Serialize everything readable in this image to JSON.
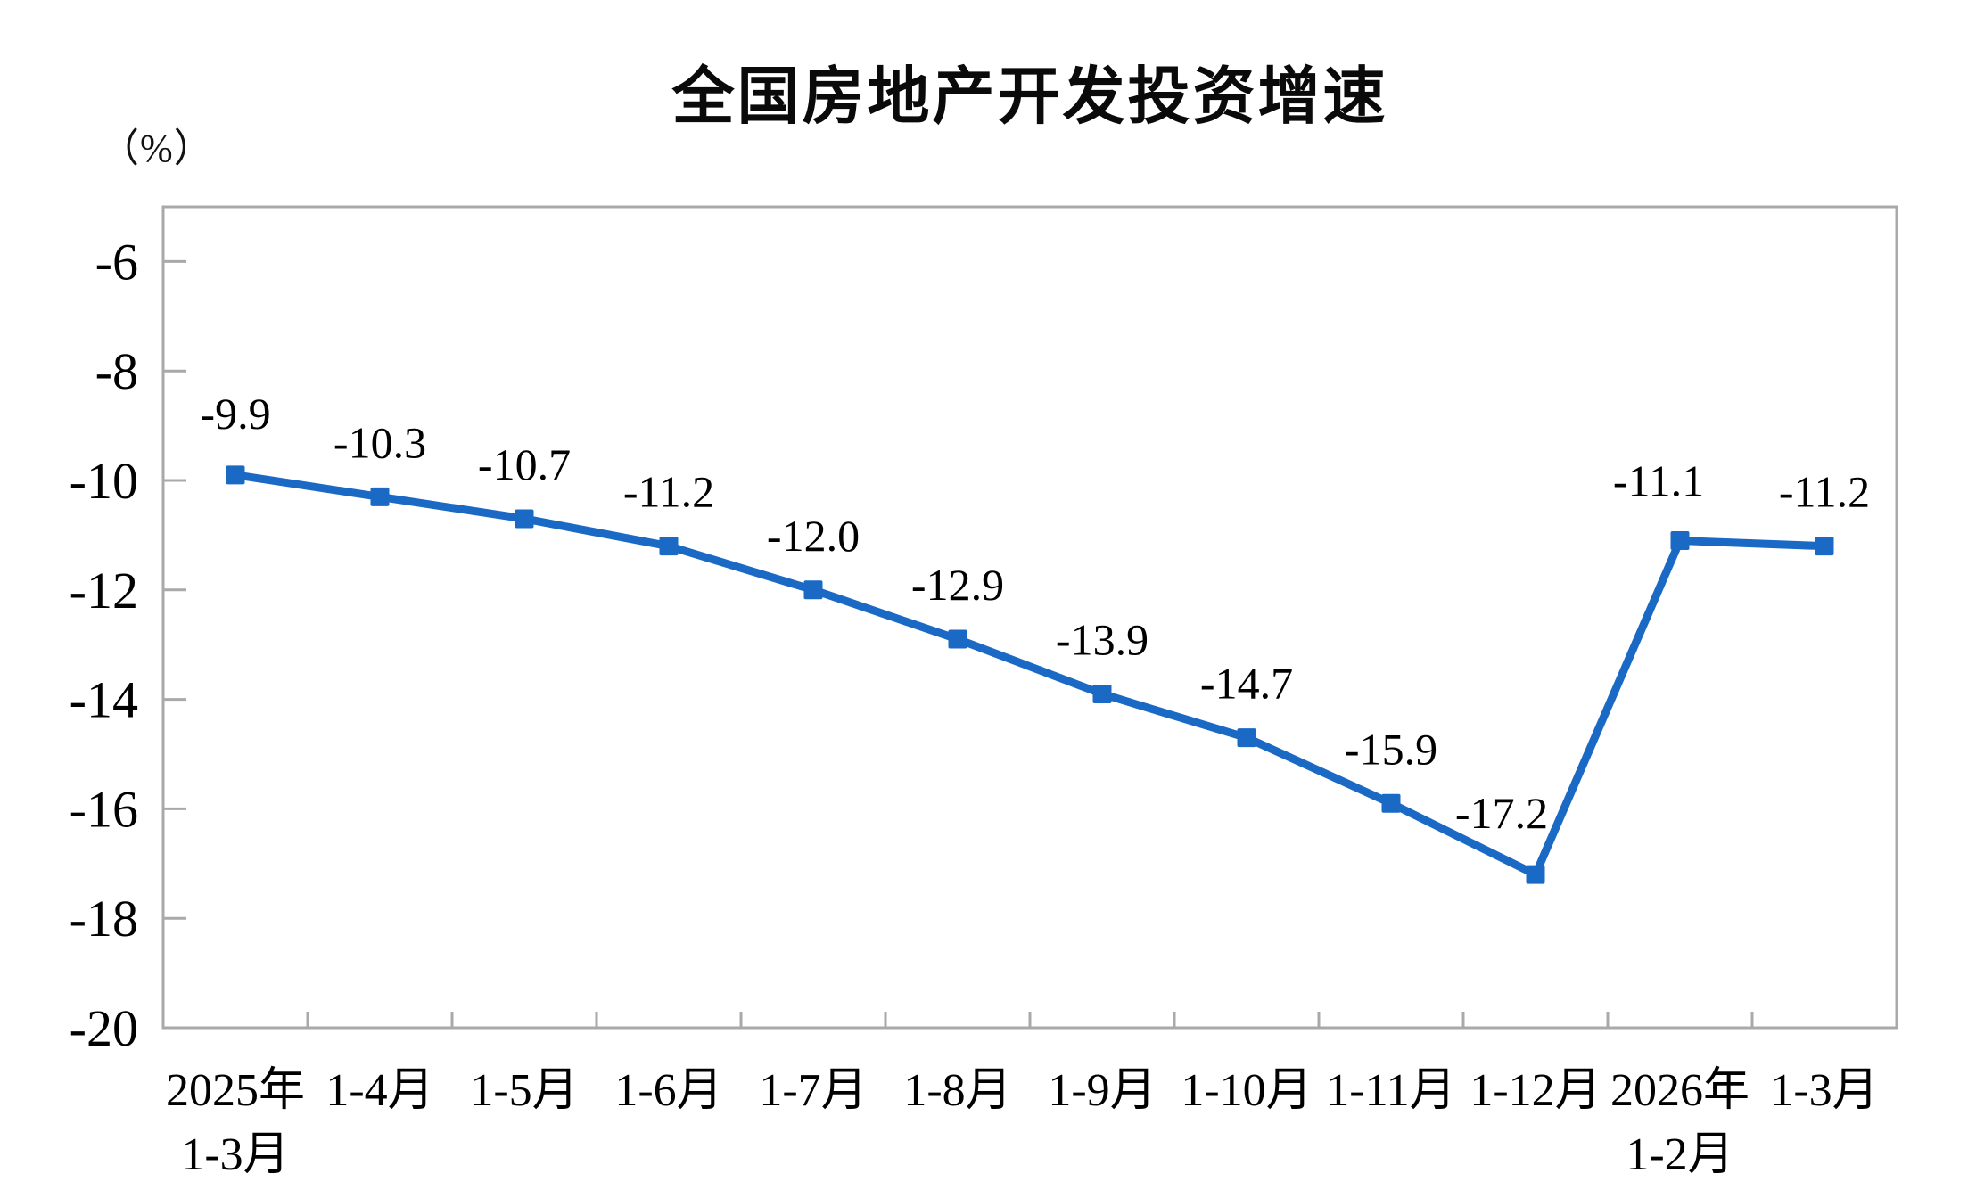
{
  "chart_data": {
    "type": "line",
    "title": "全国房地产开发投资增速",
    "unit_label": "（%）",
    "series_name": "全国房地产开发投资增速",
    "categories": [
      [
        "2025年",
        "1-3月"
      ],
      [
        "1-4月"
      ],
      [
        "1-5月"
      ],
      [
        "1-6月"
      ],
      [
        "1-7月"
      ],
      [
        "1-8月"
      ],
      [
        "1-9月"
      ],
      [
        "1-10月"
      ],
      [
        "1-11月"
      ],
      [
        "1-12月"
      ],
      [
        "2026年",
        "1-2月"
      ],
      [
        "1-3月"
      ]
    ],
    "values": [
      -9.9,
      -10.3,
      -10.7,
      -11.2,
      -12.0,
      -12.9,
      -13.9,
      -14.7,
      -15.9,
      -17.2,
      -11.1,
      -11.2
    ],
    "data_labels": [
      "-9.9",
      "-10.3",
      "-10.7",
      "-11.2",
      "-12.0",
      "-12.9",
      "-13.9",
      "-14.7",
      "-15.9",
      "-17.2",
      "-11.1",
      "-11.2"
    ],
    "ytick_labels": [
      "-6",
      "-8",
      "-10",
      "-12",
      "-14",
      "-16",
      "-18",
      "-20"
    ],
    "yticks": [
      -6,
      -8,
      -10,
      -12,
      -14,
      -16,
      -18,
      -20
    ],
    "ylim": [
      -20,
      -5
    ],
    "grid": false,
    "legend": "none",
    "marker": "square",
    "colors": {
      "line": "#1A6AC5",
      "marker": "#1A6AC5",
      "axis": "#A9A9A9",
      "text": "#000000",
      "background": "#FFFFFF"
    }
  }
}
